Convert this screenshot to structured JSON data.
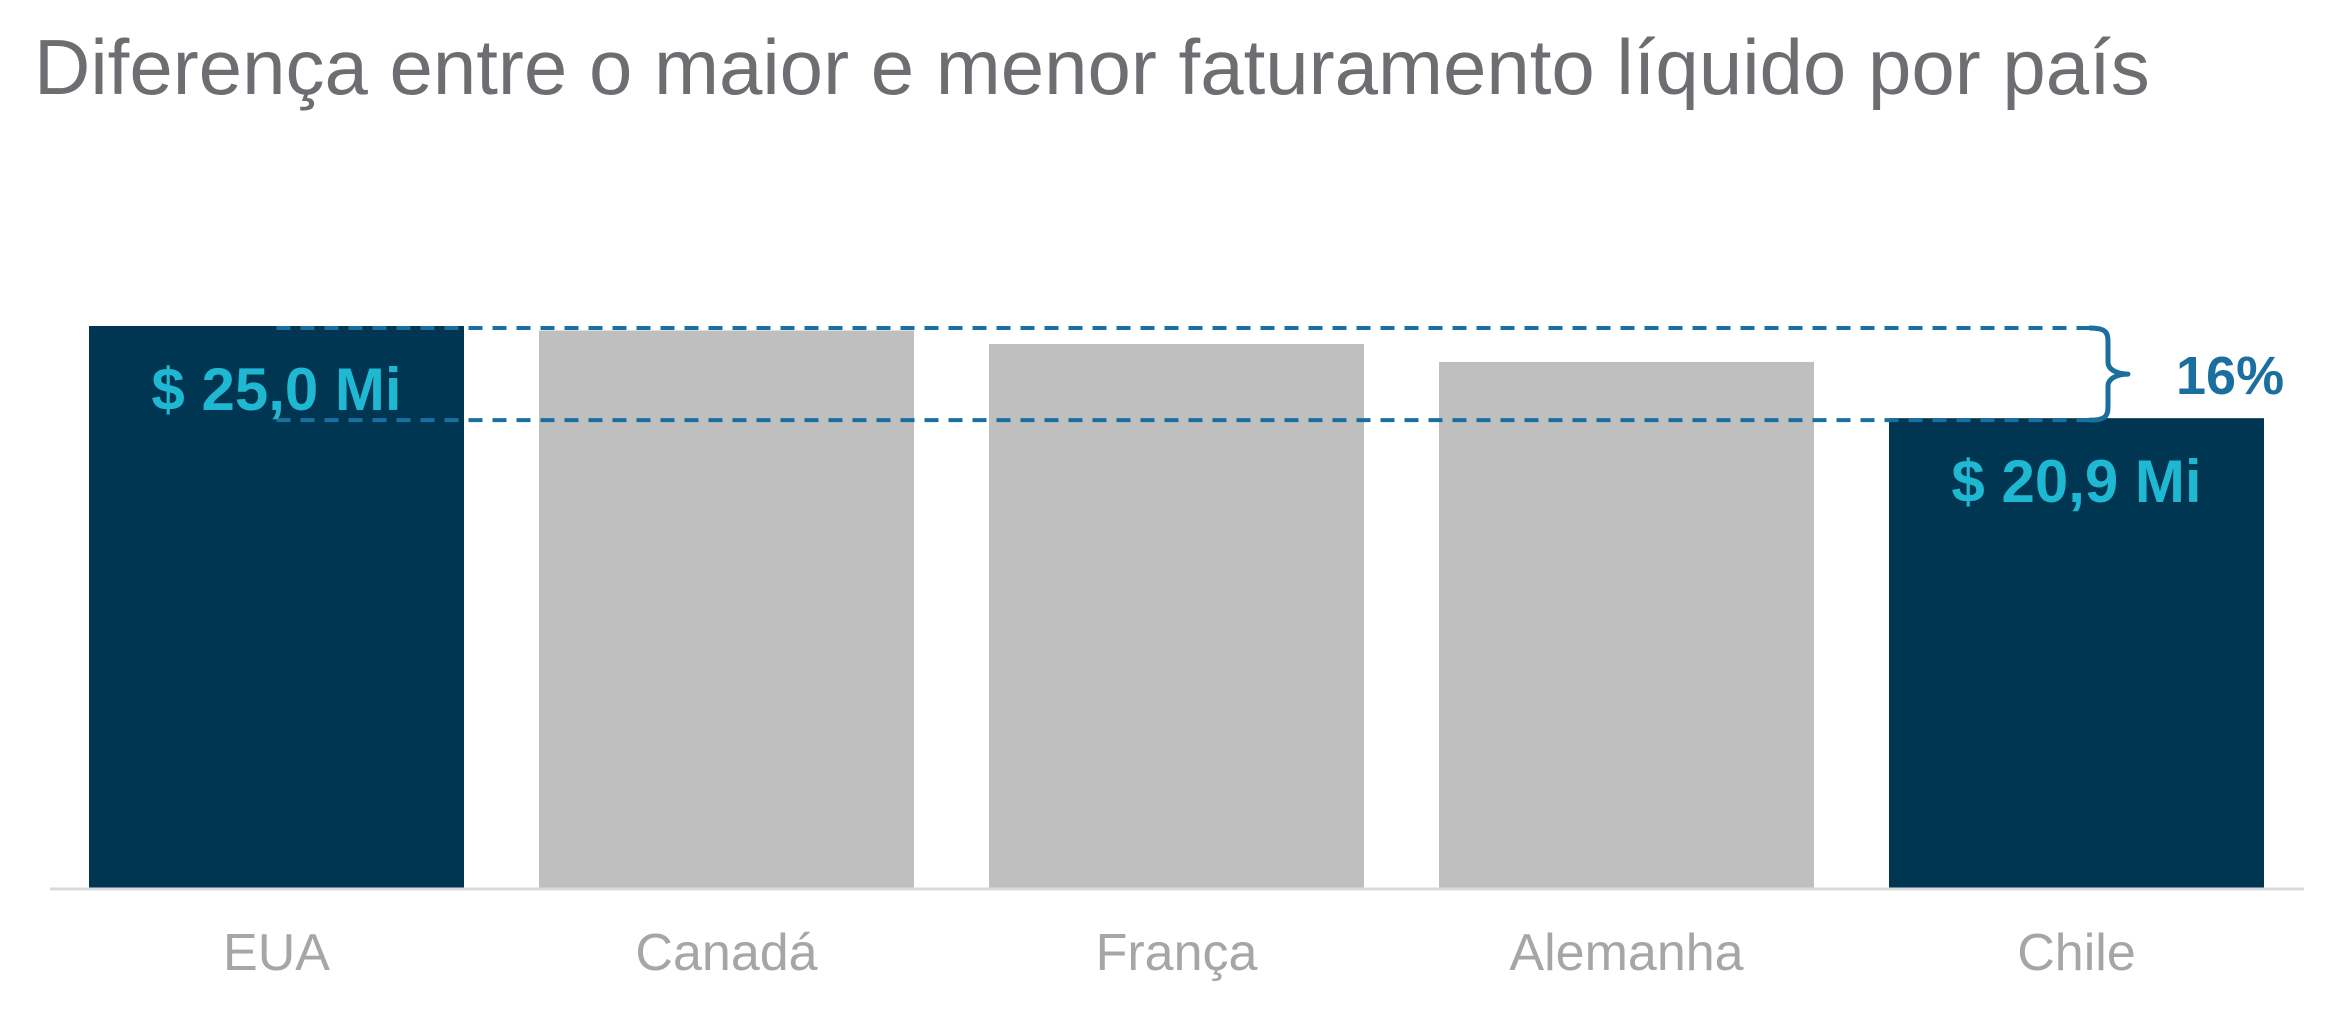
{
  "chart_data": {
    "type": "bar",
    "title": "Diferença entre o maior e menor faturamento líquido por país",
    "xlabel": "",
    "ylabel": "",
    "categories": [
      "EUA",
      "Canadá",
      "França",
      "Alemanha",
      "Chile"
    ],
    "values": [
      25.0,
      24.8,
      24.2,
      23.4,
      20.9
    ],
    "unit": "Mi",
    "ylim": [
      0,
      25.0
    ],
    "grid": false,
    "highlighted": [
      "EUA",
      "Chile"
    ],
    "data_labels": {
      "EUA": "$ 25,0 Mi",
      "Chile": "$ 20,9 Mi"
    },
    "annotation": {
      "from": "EUA",
      "to": "Chile",
      "label": "16%"
    }
  },
  "colors": {
    "highlight_bar": "#003651",
    "other_bar": "#bfbfbf",
    "value_label": "#1fb8d3",
    "annotation": "#1a6f9e",
    "axis_line": "#d9d9d9",
    "tick_label": "#a6a6a6",
    "title": "#6d6e71"
  }
}
